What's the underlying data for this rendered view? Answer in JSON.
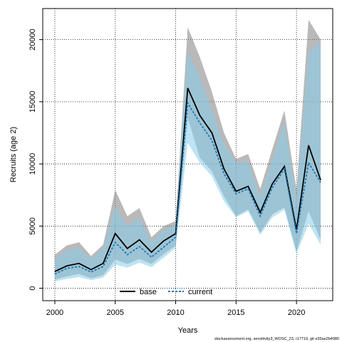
{
  "chart_data": {
    "type": "line",
    "xlabel": "Years",
    "ylabel": "Recruits (age 2)",
    "xlim": [
      1999,
      2023
    ],
    "ylim": [
      -1000,
      22500
    ],
    "x_ticks": [
      2000,
      2005,
      2010,
      2015,
      2020
    ],
    "y_ticks": [
      0,
      5000,
      10000,
      15000,
      20000
    ],
    "grid": true,
    "legend_position": "bottom-center",
    "x": [
      2000,
      2001,
      2002,
      2003,
      2004,
      2005,
      2006,
      2007,
      2008,
      2009,
      2010,
      2011,
      2012,
      2013,
      2014,
      2015,
      2016,
      2017,
      2018,
      2019,
      2020,
      2021,
      2022
    ],
    "series": [
      {
        "name": "base",
        "color": "#000000",
        "line_style": "solid",
        "band_color": "#808080",
        "values": [
          1350,
          1800,
          2000,
          1500,
          2000,
          4400,
          3200,
          3900,
          2900,
          3800,
          4400,
          16100,
          13900,
          12500,
          9600,
          7800,
          8200,
          6100,
          8400,
          9800,
          4700,
          11500,
          8700
        ],
        "lower": [
          700,
          950,
          1150,
          800,
          1050,
          2300,
          1950,
          2350,
          1950,
          2750,
          3450,
          13700,
          10500,
          9400,
          7400,
          5800,
          6350,
          4450,
          5950,
          6500,
          2950,
          6200,
          3900
        ],
        "upper": [
          2700,
          3450,
          3700,
          2600,
          3500,
          7900,
          5800,
          6450,
          4100,
          5000,
          5400,
          21000,
          18600,
          15800,
          12500,
          10400,
          10800,
          8000,
          11200,
          14300,
          7900,
          21600,
          20000
        ]
      },
      {
        "name": "current",
        "color": "#1f77b4",
        "line_style": "dashed",
        "band_color": "#87ceeb",
        "values": [
          1150,
          1600,
          1750,
          1300,
          1750,
          3700,
          2700,
          3350,
          2500,
          3300,
          4100,
          14900,
          13300,
          11900,
          9200,
          7600,
          8000,
          5800,
          8100,
          9600,
          4400,
          10100,
          8500
        ],
        "lower": [
          550,
          750,
          900,
          650,
          850,
          1900,
          1650,
          2050,
          1700,
          2450,
          3250,
          11700,
          10100,
          9000,
          7000,
          5700,
          6200,
          4300,
          5700,
          6300,
          2750,
          5200,
          3500
        ],
        "upper": [
          2300,
          3050,
          3250,
          2350,
          3200,
          6600,
          5000,
          5700,
          3700,
          4650,
          5150,
          19000,
          17000,
          14300,
          11600,
          10100,
          10200,
          7300,
          10300,
          13400,
          7300,
          19000,
          19800
        ]
      }
    ],
    "footnote": "stockassessment.org, sensitivity3_WOSC_23, r17719, git e35ae2b4980"
  }
}
